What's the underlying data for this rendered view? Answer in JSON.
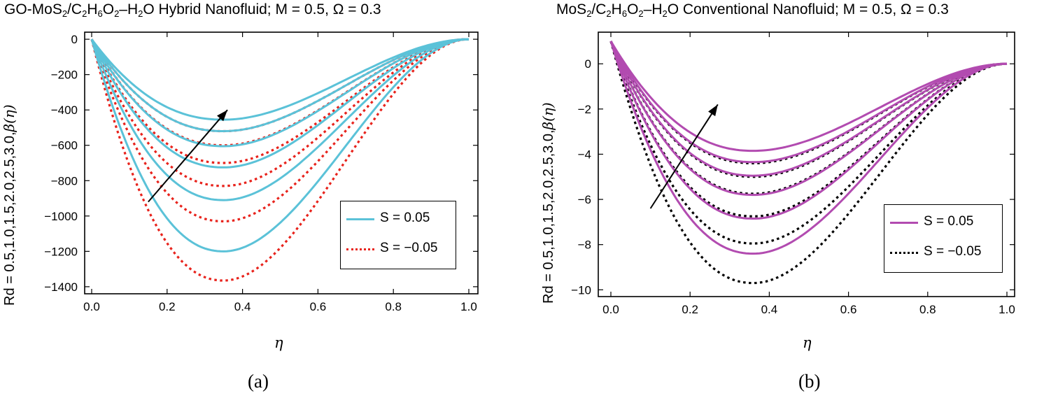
{
  "chart_data": [
    {
      "type": "line",
      "panel": "(a)",
      "title_parts": {
        "t1": "GO-MoS",
        "s1": "2",
        "t2": "/C",
        "s2": "2",
        "t3": "H",
        "s3": "6",
        "t4": "O",
        "s4": "2",
        "t5": "–H",
        "s5": "2",
        "t6": "O Hybrid Nanofluid; M = 0.5, Ω = 0.3"
      },
      "ylabel_text": "Rd = 0.5,1.0,1.5,2.0,2.5,3.0,",
      "ylabel_symbol": "β(η)",
      "xlabel": "η",
      "caption": "(a)",
      "xlim": [
        0,
        1
      ],
      "ylim": [
        -1440,
        40
      ],
      "xticks": [
        0.0,
        0.2,
        0.4,
        0.6,
        0.8,
        1.0
      ],
      "xtick_labels": [
        "0.0",
        "0.2",
        "0.4",
        "0.6",
        "0.8",
        "1.0"
      ],
      "yticks": [
        0,
        -200,
        -400,
        -600,
        -800,
        -1000,
        -1200,
        -1400
      ],
      "ytick_labels": [
        "0",
        "-200",
        "-400",
        "-600",
        "-800",
        "-1000",
        "-1200",
        "-1400"
      ],
      "curve_start": 0,
      "curve_end": 0,
      "minimum_location_eta": 0.35,
      "rd_values": [
        0.5,
        1.0,
        1.5,
        2.0,
        2.5,
        3.0
      ],
      "series": [
        {
          "name": "S = 0.05",
          "style": "solid",
          "color": "#5bc2d8",
          "minima": [
            -1200,
            -910,
            -725,
            -605,
            -520,
            -455
          ]
        },
        {
          "name": "S = -0.05",
          "style": "dotted",
          "color": "#e8231c",
          "minima": [
            -1365,
            -1030,
            -830,
            -700,
            -600,
            -520
          ]
        }
      ],
      "legend": {
        "entries": [
          "S = 0.05",
          "S = −0.05"
        ],
        "position": "lower-right"
      },
      "arrow": {
        "from": [
          0.15,
          -920
        ],
        "to": [
          0.36,
          -400
        ],
        "meaning": "increasing Rd"
      }
    },
    {
      "type": "line",
      "panel": "(b)",
      "title_parts": {
        "t1": "MoS",
        "s1": "2",
        "t2": "/C",
        "s2": "2",
        "t3": "H",
        "s3": "6",
        "t4": "O",
        "s4": "2",
        "t5": "–H",
        "s5": "2",
        "t6": "O Conventional Nanofluid; M = 0.5, Ω = 0.3"
      },
      "ylabel_text": "Rd = 0.5,1.0,1.5,2.0,2.5,3.0,",
      "ylabel_symbol": "β(η)",
      "xlabel": "η",
      "caption": "(b)",
      "xlim": [
        0,
        1
      ],
      "ylim": [
        -10.3,
        1.4
      ],
      "xticks": [
        0.0,
        0.2,
        0.4,
        0.6,
        0.8,
        1.0
      ],
      "xtick_labels": [
        "0.0",
        "0.2",
        "0.4",
        "0.6",
        "0.8",
        "1.0"
      ],
      "yticks": [
        0,
        -2,
        -4,
        -6,
        -8,
        -10
      ],
      "ytick_labels": [
        "0",
        "-2",
        "-4",
        "-6",
        "-8",
        "-10"
      ],
      "curve_start": 1,
      "curve_end": 0,
      "minimum_location_eta": 0.36,
      "rd_values": [
        0.5,
        1.0,
        1.5,
        2.0,
        2.5,
        3.0
      ],
      "series": [
        {
          "name": "S = 0.05",
          "style": "solid",
          "color": "#b24bb0",
          "minima": [
            -8.4,
            -6.85,
            -5.8,
            -4.95,
            -4.35,
            -3.85
          ]
        },
        {
          "name": "S = -0.05",
          "style": "dotted",
          "color": "#000000",
          "minima": [
            -9.7,
            -7.95,
            -6.75,
            -5.75,
            -5.0,
            -4.4
          ]
        }
      ],
      "legend": {
        "entries": [
          "S = 0.05",
          "S = −0.05"
        ],
        "position": "lower-right"
      },
      "arrow": {
        "from": [
          0.1,
          -6.4
        ],
        "to": [
          0.27,
          -1.8
        ],
        "meaning": "increasing Rd"
      }
    }
  ]
}
